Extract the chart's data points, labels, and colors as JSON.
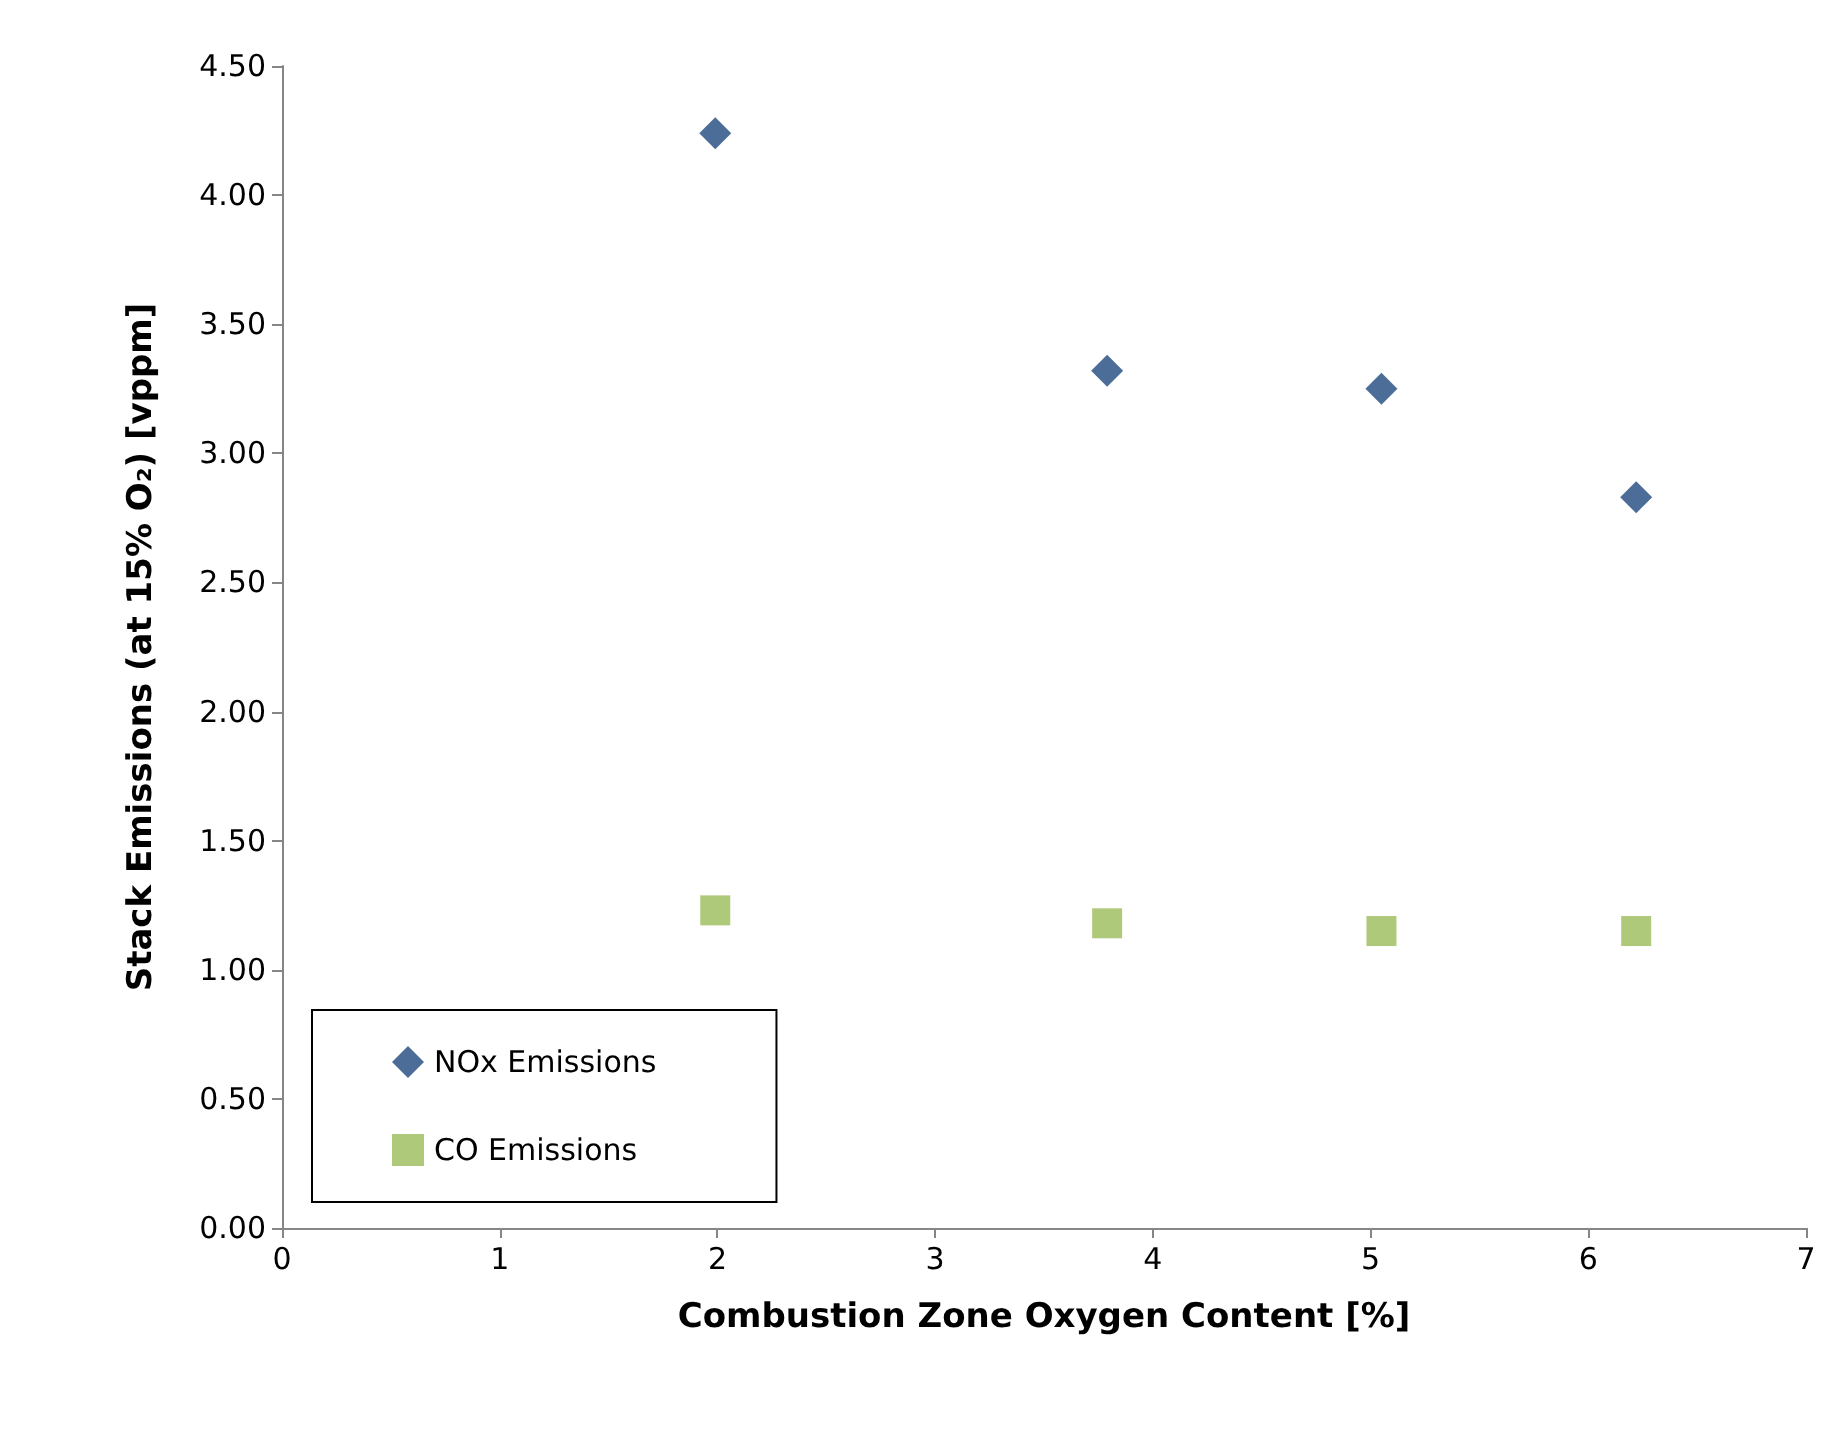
{
  "chart_data": {
    "type": "scatter",
    "xlabel": "Combustion Zone Oxygen Content [%]",
    "ylabel": "Stack Emissions (at 15% O₂) [vppm]",
    "xlim": [
      0,
      7
    ],
    "xticks": [
      0,
      1,
      2,
      3,
      4,
      5,
      6,
      7
    ],
    "ylim": [
      0,
      4.5
    ],
    "yticks": [
      {
        "value": 0,
        "label": "0.00"
      },
      {
        "value": 0.5,
        "label": "0.50"
      },
      {
        "value": 1,
        "label": "1.00"
      },
      {
        "value": 1.5,
        "label": "1.50"
      },
      {
        "value": 2,
        "label": "2.00"
      },
      {
        "value": 2.5,
        "label": "2.50"
      },
      {
        "value": 3,
        "label": "3.00"
      },
      {
        "value": 3.5,
        "label": "3.50"
      },
      {
        "value": 4,
        "label": "4.00"
      },
      {
        "value": 4.5,
        "label": "4.50"
      }
    ],
    "grid": false,
    "legend": "bottom left",
    "series": [
      {
        "name": "NOx Emissions",
        "color": "#1f497d",
        "marker": "diamond",
        "x": [
          1.99,
          3.79,
          5.05,
          6.22
        ],
        "values": [
          4.24,
          3.32,
          3.25,
          2.83
        ]
      },
      {
        "name": "CO Emissions",
        "color": "#9bbb59",
        "marker": "square",
        "x": [
          1.99,
          3.79,
          5.05,
          6.22
        ],
        "values": [
          1.23,
          1.18,
          1.15,
          1.15
        ]
      }
    ]
  }
}
